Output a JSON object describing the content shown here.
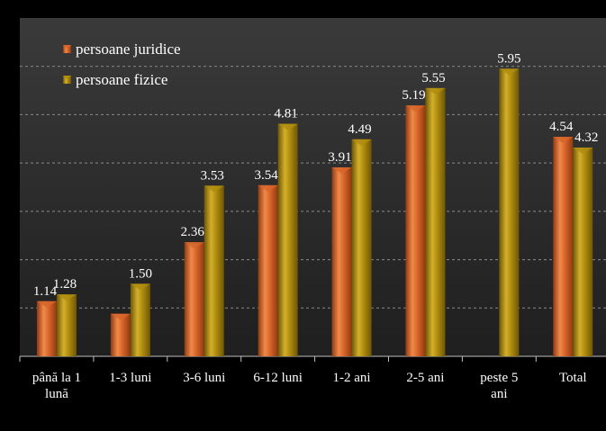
{
  "chart_data": {
    "type": "bar",
    "categories": [
      [
        "până la 1",
        "lună"
      ],
      [
        "1-3 luni"
      ],
      [
        "3-6 luni"
      ],
      [
        "6-12 luni"
      ],
      [
        "1-2 ani"
      ],
      [
        "2-5 ani"
      ],
      [
        "peste 5",
        "ani"
      ],
      [
        "Total"
      ]
    ],
    "series": [
      {
        "name": "persoane juridice",
        "values": [
          1.14,
          0.88,
          2.36,
          3.54,
          3.91,
          5.19,
          null,
          4.54
        ],
        "labels": [
          "1.14",
          "",
          "2.36",
          "3.54",
          "3.91",
          "5.19",
          "",
          "4.54"
        ]
      },
      {
        "name": "persoane fizice",
        "values": [
          1.28,
          1.5,
          3.53,
          4.81,
          4.49,
          5.55,
          5.95,
          4.32
        ],
        "labels": [
          "1.28",
          "1.50",
          "3.53",
          "4.81",
          "4.49",
          "5.55",
          "5.95",
          "4.32"
        ]
      }
    ],
    "ylim": [
      0,
      7
    ],
    "gridlines": [
      1,
      2,
      3,
      4,
      5,
      6
    ],
    "grid": true,
    "legend_position": "top-left",
    "colors": {
      "background": "#000000",
      "plot_area": "#2b2b2b",
      "juridice": "#d8652a",
      "fizice": "#b08d0f",
      "grid": "#8a8a8a"
    }
  }
}
